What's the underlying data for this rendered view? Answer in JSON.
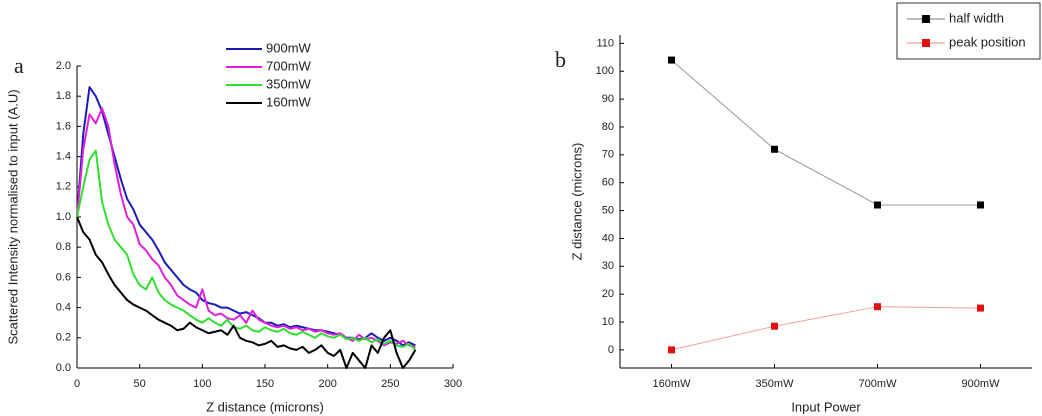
{
  "chart_data": [
    {
      "type": "line",
      "panel_label": "a",
      "xlabel": "Z distance (microns)",
      "ylabel": "Scattered Intensity normalised to input (A.U)",
      "xlim": [
        0,
        300
      ],
      "xticks": [
        0,
        50,
        100,
        150,
        200,
        250,
        300
      ],
      "ylim": [
        0,
        2.0
      ],
      "yticks": [
        {
          "value": 0,
          "label": "0.0"
        },
        {
          "value": 0.2,
          "label": "0.2"
        },
        {
          "value": 0.4,
          "label": "0.4"
        },
        {
          "value": 0.6,
          "label": "0.6"
        },
        {
          "value": 0.8,
          "label": "0.8"
        },
        {
          "value": 1.0,
          "label": "1.0"
        },
        {
          "value": 1.2,
          "label": "1.2"
        },
        {
          "value": 1.4,
          "label": "1.4"
        },
        {
          "value": 1.6,
          "label": "1.6"
        },
        {
          "value": 1.8,
          "label": "1.8"
        },
        {
          "value": 2.0,
          "label": "2.0"
        }
      ],
      "legend": "top-center",
      "x": [
        0,
        5,
        10,
        15,
        20,
        25,
        30,
        35,
        40,
        45,
        50,
        55,
        60,
        65,
        70,
        75,
        80,
        85,
        90,
        95,
        100,
        105,
        110,
        115,
        120,
        125,
        130,
        135,
        140,
        145,
        150,
        155,
        160,
        165,
        170,
        175,
        180,
        185,
        190,
        195,
        200,
        205,
        210,
        215,
        220,
        225,
        230,
        235,
        240,
        245,
        250,
        255,
        260,
        265,
        270
      ],
      "series": [
        {
          "name": "900mW",
          "color": "#1a1ab8",
          "values": [
            1.0,
            1.55,
            1.86,
            1.8,
            1.7,
            1.55,
            1.4,
            1.25,
            1.12,
            1.05,
            0.95,
            0.9,
            0.85,
            0.78,
            0.7,
            0.65,
            0.6,
            0.55,
            0.52,
            0.5,
            0.45,
            0.43,
            0.42,
            0.4,
            0.4,
            0.38,
            0.36,
            0.37,
            0.35,
            0.33,
            0.3,
            0.3,
            0.28,
            0.29,
            0.27,
            0.28,
            0.27,
            0.26,
            0.25,
            0.25,
            0.24,
            0.23,
            0.22,
            0.2,
            0.2,
            0.19,
            0.2,
            0.23,
            0.2,
            0.18,
            0.2,
            0.18,
            0.15,
            0.17,
            0.15
          ]
        },
        {
          "name": "700mW",
          "color": "#e020d8",
          "values": [
            1.0,
            1.45,
            1.68,
            1.62,
            1.72,
            1.6,
            1.35,
            1.15,
            1.0,
            0.95,
            0.82,
            0.78,
            0.72,
            0.68,
            0.6,
            0.55,
            0.48,
            0.45,
            0.42,
            0.4,
            0.52,
            0.38,
            0.35,
            0.36,
            0.33,
            0.32,
            0.35,
            0.3,
            0.38,
            0.32,
            0.3,
            0.28,
            0.27,
            0.28,
            0.26,
            0.27,
            0.25,
            0.26,
            0.24,
            0.25,
            0.23,
            0.22,
            0.23,
            0.2,
            0.18,
            0.22,
            0.19,
            0.2,
            0.18,
            0.15,
            0.17,
            0.16,
            0.18,
            0.15,
            0.14
          ]
        },
        {
          "name": "350mW",
          "color": "#30e030",
          "values": [
            1.0,
            1.2,
            1.38,
            1.44,
            1.1,
            0.95,
            0.85,
            0.8,
            0.75,
            0.62,
            0.55,
            0.52,
            0.6,
            0.5,
            0.45,
            0.42,
            0.4,
            0.38,
            0.35,
            0.32,
            0.3,
            0.33,
            0.3,
            0.28,
            0.32,
            0.27,
            0.26,
            0.28,
            0.25,
            0.24,
            0.27,
            0.25,
            0.24,
            0.26,
            0.23,
            0.22,
            0.24,
            0.22,
            0.2,
            0.23,
            0.21,
            0.2,
            0.22,
            0.19,
            0.2,
            0.18,
            0.2,
            0.17,
            0.19,
            0.16,
            0.18,
            0.15,
            0.14,
            0.16,
            0.12
          ]
        },
        {
          "name": "160mW",
          "color": "#000000",
          "values": [
            1.0,
            0.9,
            0.85,
            0.75,
            0.7,
            0.62,
            0.55,
            0.5,
            0.45,
            0.42,
            0.4,
            0.38,
            0.35,
            0.32,
            0.3,
            0.28,
            0.25,
            0.26,
            0.3,
            0.27,
            0.25,
            0.23,
            0.24,
            0.25,
            0.22,
            0.28,
            0.2,
            0.18,
            0.17,
            0.15,
            0.16,
            0.18,
            0.14,
            0.15,
            0.13,
            0.12,
            0.14,
            0.1,
            0.12,
            0.15,
            0.1,
            0.08,
            0.12,
            0.0,
            0.1,
            0.05,
            0.0,
            0.15,
            0.1,
            0.2,
            0.25,
            0.1,
            0.0,
            0.05,
            0.12
          ]
        }
      ]
    },
    {
      "type": "line",
      "panel_label": "b",
      "marker": "square",
      "xlabel": "Input Power",
      "ylabel": "Z distance (microns)",
      "categories": [
        "160mW",
        "350mW",
        "700mW",
        "900mW"
      ],
      "ylim": [
        -6.5,
        113
      ],
      "yticks": [
        0,
        10,
        20,
        30,
        40,
        50,
        60,
        70,
        80,
        90,
        100,
        110
      ],
      "legend": "top-right",
      "series": [
        {
          "name": "half width",
          "color": "#000000",
          "values": [
            104,
            72,
            52,
            52
          ]
        },
        {
          "name": "peak position",
          "color": "#e01010",
          "values": [
            0,
            8.5,
            15.5,
            15
          ]
        }
      ]
    }
  ]
}
